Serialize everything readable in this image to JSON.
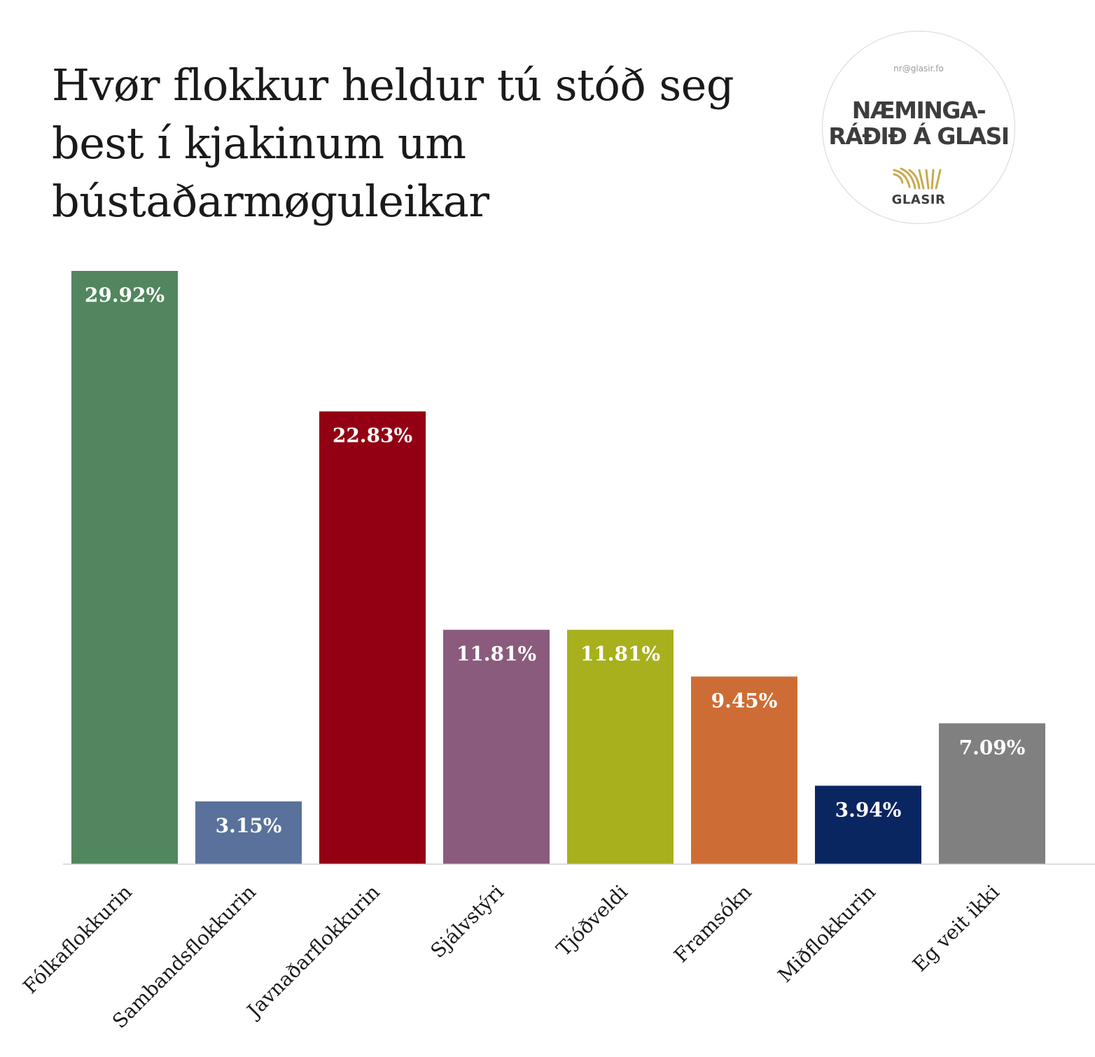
{
  "chart_data": {
    "type": "bar",
    "title_lines": [
      "Hvør flokkur heldur tú stóð seg",
      "best í kjakinum um",
      "bústaðarmøguleikar"
    ],
    "xlabel": "",
    "ylabel": "",
    "ylim": [
      0,
      30
    ],
    "grid": false,
    "legend": "none",
    "categories": [
      "Fólkaflokkurin",
      "Sambandsflokkurin",
      "Javnaðarflokkurin",
      "Sjálvstýri",
      "Tjóðveldi",
      "Framsókn",
      "Miðflokkurin",
      "Eg veit ikki"
    ],
    "values": [
      29.92,
      3.15,
      22.83,
      11.81,
      11.81,
      9.45,
      3.94,
      7.09
    ],
    "value_labels": [
      "29.92%",
      "3.15%",
      "22.83%",
      "11.81%",
      "11.81%",
      "9.45%",
      "3.94%",
      "7.09%"
    ],
    "colors": [
      "#52865e",
      "#5a729b",
      "#930013",
      "#8a5b7c",
      "#a8b01e",
      "#cd6d35",
      "#0a2660",
      "#808080"
    ]
  },
  "logo": {
    "email": "nr@glasir.fo",
    "name_line1": "NÆMINGA-",
    "name_line2": "RÁÐIÐ Á GLASI",
    "brand": "GLASIR",
    "icon": "glasir-waves-icon",
    "icon_color": "#c9a94f"
  }
}
